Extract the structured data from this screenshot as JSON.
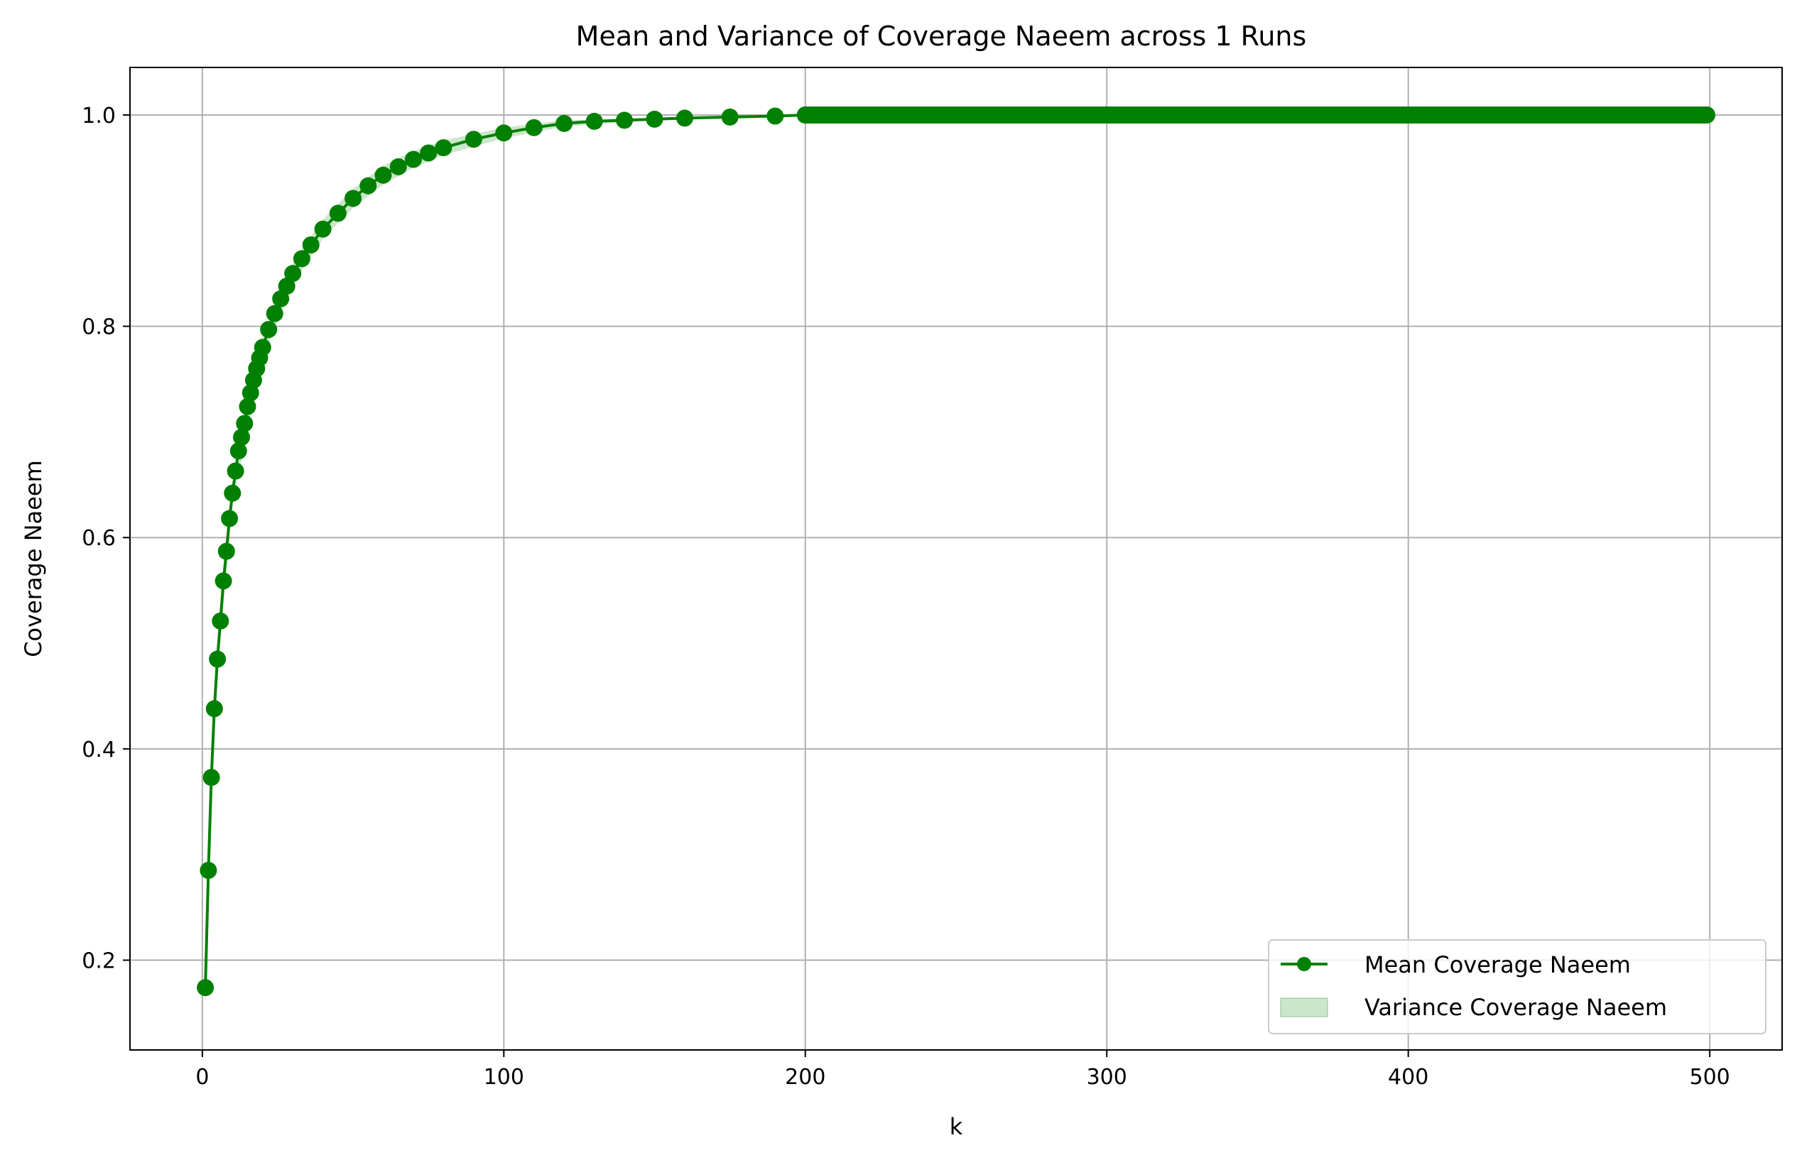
{
  "chart_data": {
    "type": "line",
    "title": "Mean and Variance of Coverage Naeem across 1 Runs",
    "xlabel": "k",
    "ylabel": "Coverage Naeem",
    "xlim": [
      -24,
      524
    ],
    "ylim": [
      0.115,
      1.045
    ],
    "xticks": [
      0,
      100,
      200,
      300,
      400,
      500
    ],
    "xtick_labels": [
      "0",
      "100",
      "200",
      "300",
      "400",
      "500"
    ],
    "yticks": [
      0.2,
      0.4,
      0.6,
      0.8,
      1.0
    ],
    "ytick_labels": [
      "0.2",
      "0.4",
      "0.6",
      "0.8",
      "1.0"
    ],
    "grid": true,
    "legend_position": "lower-right",
    "colors": {
      "line": "#008000",
      "band_fill": "#008000",
      "band_fill_opacity": 0.2,
      "grid": "#b0b0b0",
      "axes": "#000000"
    },
    "series": [
      {
        "name": "Mean Coverage Naeem",
        "kind": "line-with-markers",
        "x": [
          1,
          2,
          3,
          4,
          5,
          6,
          7,
          8,
          9,
          10,
          11,
          12,
          13,
          14,
          15,
          16,
          17,
          18,
          19,
          20,
          22,
          24,
          26,
          28,
          30,
          33,
          36,
          40,
          45,
          50,
          55,
          60,
          65,
          70,
          75,
          80,
          90,
          100,
          110,
          120,
          130,
          140,
          150,
          160,
          175,
          190,
          200,
          225,
          250,
          275,
          300,
          325,
          350,
          375,
          400,
          425,
          450,
          475,
          499
        ],
        "y": [
          0.174,
          0.285,
          0.373,
          0.438,
          0.485,
          0.521,
          0.559,
          0.587,
          0.618,
          0.642,
          0.663,
          0.682,
          0.695,
          0.708,
          0.724,
          0.737,
          0.749,
          0.76,
          0.77,
          0.78,
          0.797,
          0.812,
          0.826,
          0.838,
          0.85,
          0.864,
          0.877,
          0.892,
          0.907,
          0.921,
          0.933,
          0.943,
          0.951,
          0.958,
          0.964,
          0.969,
          0.977,
          0.983,
          0.988,
          0.992,
          0.994,
          0.995,
          0.996,
          0.997,
          0.998,
          0.999,
          1.0,
          1.0,
          1.0,
          1.0,
          1.0,
          1.0,
          1.0,
          1.0,
          1.0,
          1.0,
          1.0,
          1.0,
          1.0
        ]
      },
      {
        "name": "Variance Coverage Naeem",
        "kind": "band",
        "x": [
          1,
          2,
          3,
          5,
          10,
          20,
          30,
          40,
          50,
          60,
          70,
          80,
          100,
          120,
          150,
          200,
          300,
          400,
          499
        ],
        "lower": [
          0.158,
          0.27,
          0.36,
          0.473,
          0.632,
          0.77,
          0.84,
          0.883,
          0.912,
          0.934,
          0.95,
          0.962,
          0.978,
          0.989,
          0.995,
          0.999,
          1.0,
          1.0,
          1.0
        ],
        "upper": [
          0.19,
          0.3,
          0.386,
          0.497,
          0.652,
          0.79,
          0.86,
          0.901,
          0.93,
          0.952,
          0.966,
          0.976,
          0.988,
          0.995,
          0.997,
          1.0,
          1.0,
          1.0,
          1.0
        ]
      }
    ]
  }
}
